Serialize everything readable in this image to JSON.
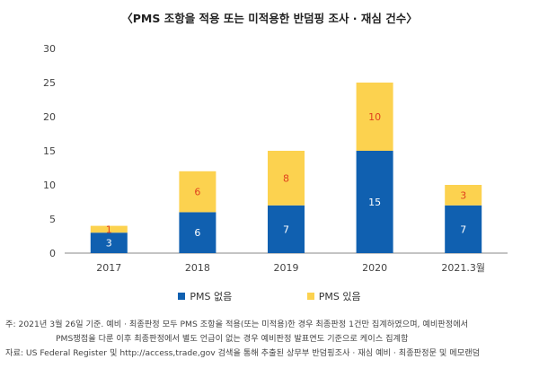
{
  "chart_data": {
    "type": "bar",
    "stacked": true,
    "title": "〈PMS 조항을 적용 또는 미적용한 반덤핑 조사 · 재심 건수〉",
    "categories": [
      "2017",
      "2018",
      "2019",
      "2020",
      "2021.3월"
    ],
    "series": [
      {
        "name": "PMS 없음",
        "color": "#1060b0",
        "values": [
          3,
          6,
          7,
          15,
          7
        ]
      },
      {
        "name": "PMS 있음",
        "color": "#fcd24f",
        "values": [
          1,
          6,
          8,
          10,
          3
        ]
      }
    ],
    "ylim": [
      0,
      30
    ],
    "yticks": [
      "0",
      "5",
      "10",
      "15",
      "20",
      "25",
      "30"
    ],
    "legend_position": "bottom",
    "grid": false,
    "label_colors": {
      "PMS 없음": "#ffffff",
      "PMS 있음": "#e0421e"
    }
  },
  "notes": {
    "note_line1": "주: 2021년 3월 26일 기준. 예비 · 최종판정 모두 PMS 조항을 적용(또는 미적용)한 경우 최종판정 1건만 집계하였으며, 예비판정에서",
    "note_line2": "PMS쟁점을 다룬 이후 최종판정에서 별도 언급이 없는 경우 예비판정 발표연도 기준으로 케이스 집계함",
    "source": "자료: US Federal Register 및 http://access,trade,gov 검색을 통해 추출된 상무부 반덤핑조사 · 재심 예비 · 최종판정문 및 메모랜덤"
  }
}
